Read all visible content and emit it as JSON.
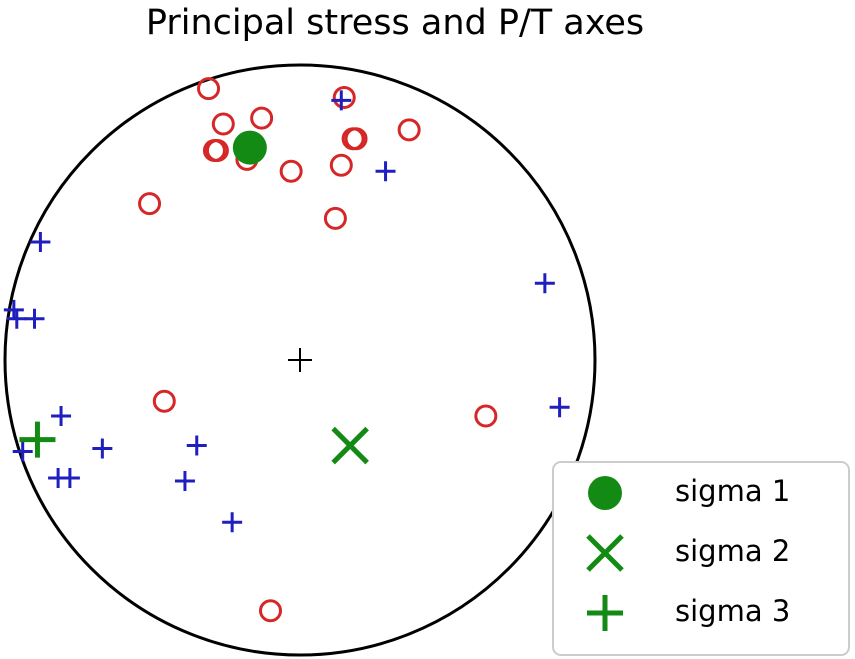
{
  "chart_data": {
    "type": "scatter",
    "title": "Principal stress and P/T axes",
    "xlim": [
      -1,
      1
    ],
    "ylim": [
      -1,
      1
    ],
    "series": [
      {
        "marker": "open-circle",
        "color": "#d62728",
        "x": [
          -0.31,
          -0.13,
          -0.26,
          0.15,
          0.18,
          0.19,
          0.37,
          -0.29,
          -0.28,
          -0.18,
          -0.03,
          0.14,
          -0.51,
          0.12,
          -0.46,
          0.63,
          -0.1
        ],
        "values": [
          0.92,
          0.82,
          0.8,
          0.89,
          0.75,
          0.75,
          0.78,
          0.71,
          0.71,
          0.68,
          0.64,
          0.66,
          0.53,
          0.48,
          -0.14,
          -0.19,
          -0.85
        ]
      },
      {
        "marker": "plus",
        "color": "#1f1fbf",
        "x": [
          0.14,
          0.29,
          -0.88,
          0.83,
          -0.97,
          -0.96,
          -0.9,
          0.88,
          -0.81,
          -0.94,
          -0.67,
          -0.35,
          -0.82,
          -0.78,
          -0.39,
          -0.23
        ],
        "values": [
          0.88,
          0.64,
          0.4,
          0.26,
          0.17,
          0.14,
          0.14,
          -0.16,
          -0.19,
          -0.31,
          -0.3,
          -0.29,
          -0.4,
          -0.4,
          -0.41,
          -0.55
        ]
      },
      {
        "name": "sigma 1",
        "marker": "big-circle",
        "color": "#138a13",
        "x": [
          -0.17
        ],
        "values": [
          0.72
        ]
      },
      {
        "name": "sigma 2",
        "marker": "big-x",
        "color": "#138a13",
        "x": [
          0.17
        ],
        "values": [
          -0.29
        ]
      },
      {
        "name": "sigma 3",
        "marker": "big-plus",
        "color": "#138a13",
        "x": [
          -0.89
        ],
        "values": [
          -0.27
        ]
      }
    ]
  }
}
